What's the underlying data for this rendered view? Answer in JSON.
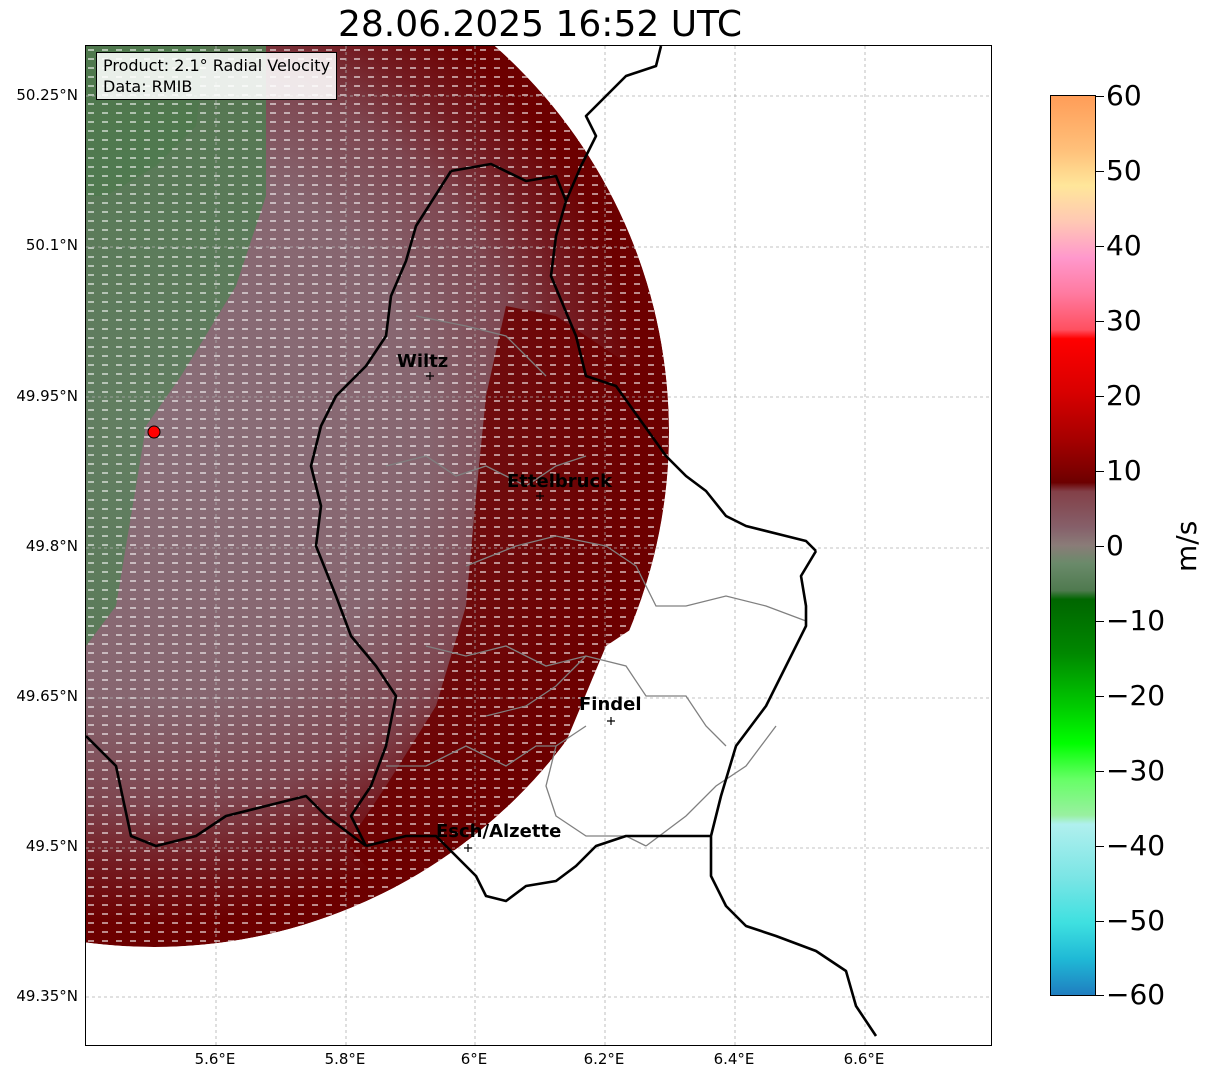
{
  "title": "28.06.2025 16:52 UTC",
  "info_box": {
    "product": "Product: 2.1° Radial Velocity",
    "data": "Data: RMIB"
  },
  "axes": {
    "y_ticks": [
      "50.25°N",
      "50.1°N",
      "49.95°N",
      "49.8°N",
      "49.65°N",
      "49.5°N",
      "49.35°N"
    ],
    "x_ticks": [
      "5.6°E",
      "5.8°E",
      "6°E",
      "6.2°E",
      "6.4°E",
      "6.6°E"
    ]
  },
  "cities": [
    {
      "name": "Wiltz"
    },
    {
      "name": "Ettelbruck"
    },
    {
      "name": "Findel"
    },
    {
      "name": "Esch/Alzette"
    }
  ],
  "radar_site": {
    "marker": "red-circle"
  },
  "colorbar": {
    "unit": "m/s",
    "ticks": [
      "60",
      "50",
      "40",
      "30",
      "20",
      "10",
      "0",
      "−10",
      "−20",
      "−30",
      "−40",
      "−50",
      "−60"
    ],
    "range": [
      -60,
      60
    ]
  },
  "colors": {
    "inbound_dark": "#6b0000",
    "neutral_mauve": "#876872",
    "outbound_green": "#5f7f5f",
    "border": "#000000",
    "canton_lines": "#808080"
  }
}
